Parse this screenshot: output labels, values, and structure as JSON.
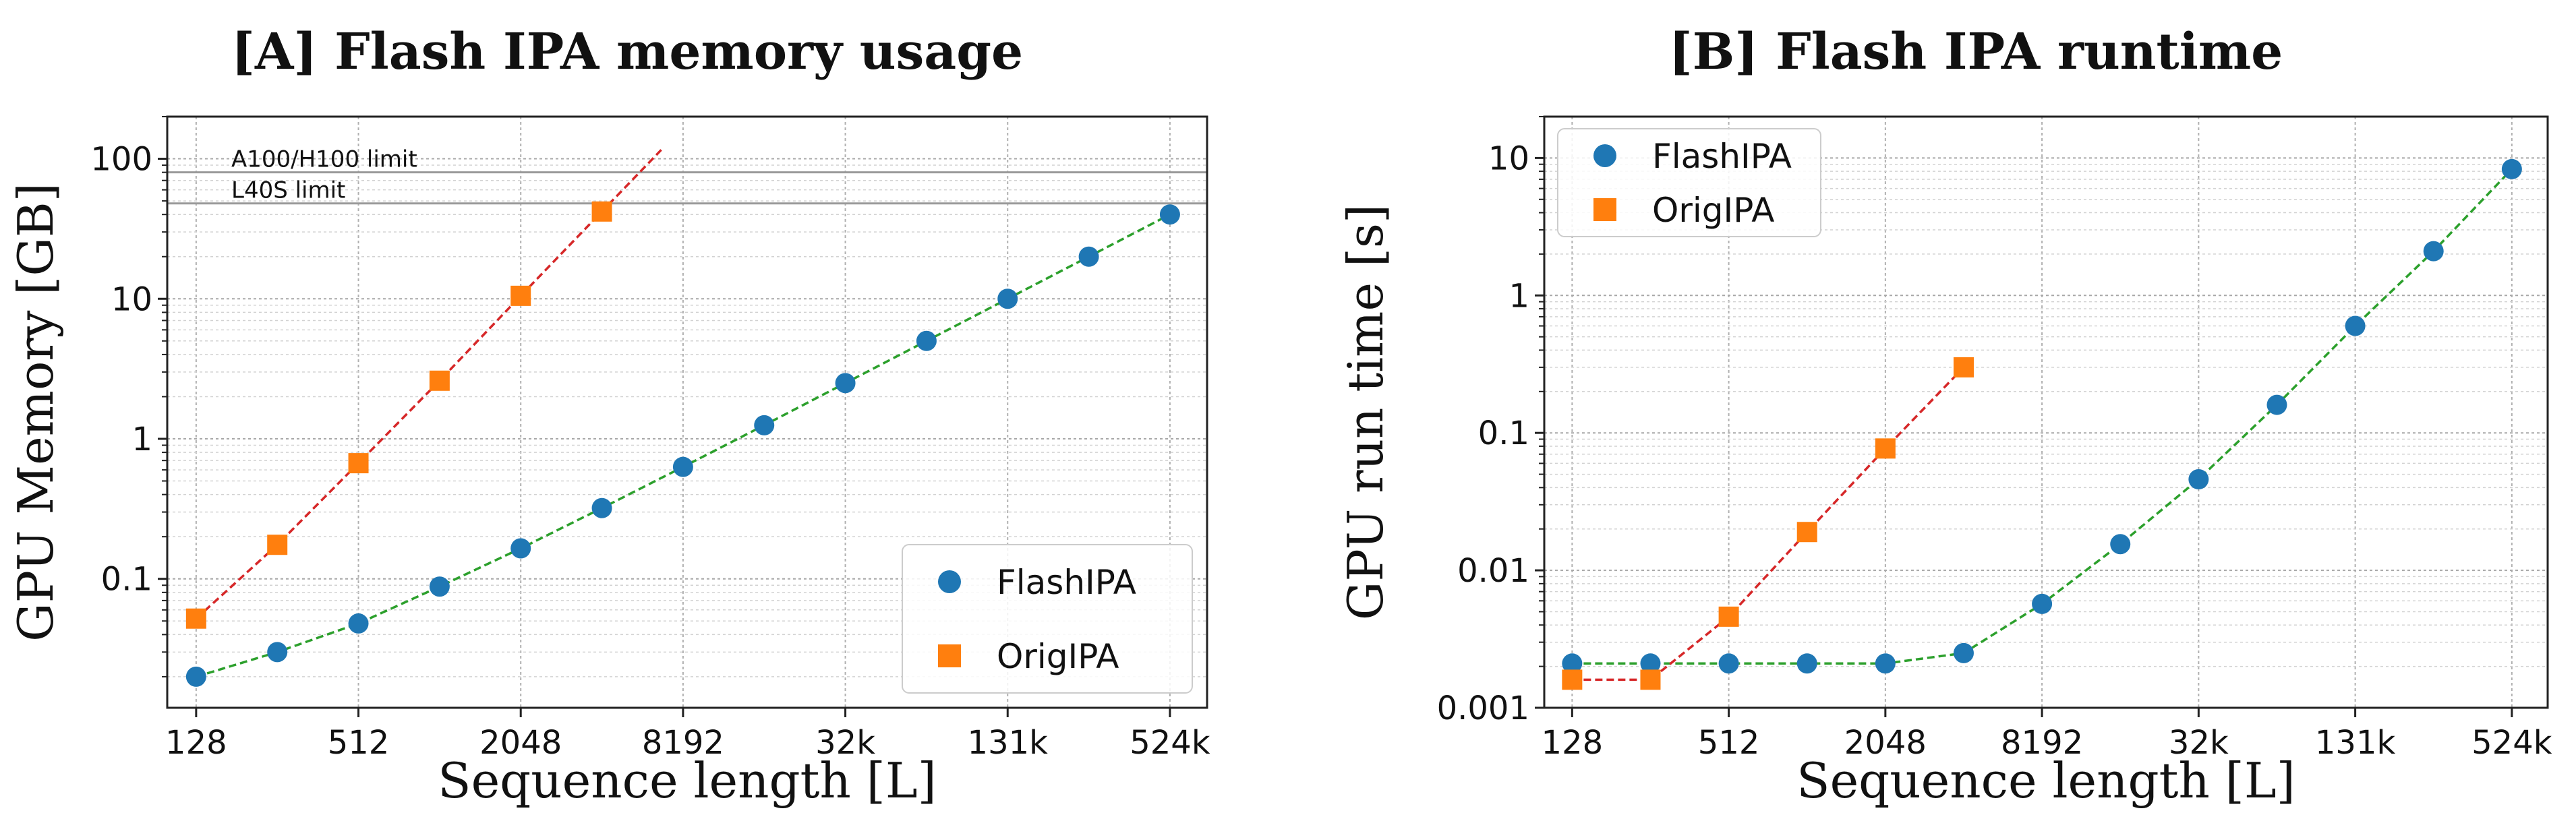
{
  "chart_data": [
    {
      "type": "line",
      "title": "[A] Flash IPA memory usage",
      "xlabel": "Sequence length [L]",
      "ylabel": "GPU Memory [GB]",
      "xscale": "log2",
      "yscale": "log",
      "ylim": [
        0.012,
        200
      ],
      "grid": true,
      "legend_position": "lower-right",
      "xticks": [
        {
          "value": 128,
          "label": "128"
        },
        {
          "value": 512,
          "label": "512"
        },
        {
          "value": 2048,
          "label": "2048"
        },
        {
          "value": 8192,
          "label": "8192"
        },
        {
          "value": 32768,
          "label": "32k"
        },
        {
          "value": 131072,
          "label": "131k"
        },
        {
          "value": 524288,
          "label": "524k"
        }
      ],
      "yticks": [
        {
          "value": 0.1,
          "label": "0.1"
        },
        {
          "value": 1,
          "label": "1"
        },
        {
          "value": 10,
          "label": "10"
        },
        {
          "value": 100,
          "label": "100"
        }
      ],
      "reference_lines": [
        {
          "value": 80,
          "label": "A100/H100 limit"
        },
        {
          "value": 48,
          "label": "L40S limit"
        }
      ],
      "series": [
        {
          "name": "FlashIPA",
          "marker": "circle",
          "color": "#1f77b4",
          "line_color": "#2ca02c",
          "x": [
            128,
            256,
            512,
            1024,
            2048,
            4096,
            8192,
            16384,
            32768,
            65536,
            131072,
            262144,
            524288
          ],
          "y": [
            0.02,
            0.03,
            0.048,
            0.088,
            0.165,
            0.32,
            0.63,
            1.25,
            2.5,
            5.0,
            10.0,
            20.0,
            40.0
          ]
        },
        {
          "name": "OrigIPA",
          "marker": "square",
          "color": "#ff7f0e",
          "line_color": "#d62728",
          "x": [
            128,
            256,
            512,
            1024,
            2048,
            4096
          ],
          "y": [
            0.052,
            0.175,
            0.67,
            2.6,
            10.5,
            42.0
          ],
          "trend_extends_to_x": 6800
        }
      ]
    },
    {
      "type": "line",
      "title": "[B] Flash IPA runtime",
      "xlabel": "Sequence length [L]",
      "ylabel": "GPU run time [s]",
      "xscale": "log2",
      "yscale": "log",
      "ylim": [
        0.001,
        20
      ],
      "grid": true,
      "legend_position": "upper-left",
      "xticks": [
        {
          "value": 128,
          "label": "128"
        },
        {
          "value": 512,
          "label": "512"
        },
        {
          "value": 2048,
          "label": "2048"
        },
        {
          "value": 8192,
          "label": "8192"
        },
        {
          "value": 32768,
          "label": "32k"
        },
        {
          "value": 131072,
          "label": "131k"
        },
        {
          "value": 524288,
          "label": "524k"
        }
      ],
      "yticks": [
        {
          "value": 0.001,
          "label": "0.001"
        },
        {
          "value": 0.01,
          "label": "0.01"
        },
        {
          "value": 0.1,
          "label": "0.1"
        },
        {
          "value": 1,
          "label": "1"
        },
        {
          "value": 10,
          "label": "10"
        }
      ],
      "series": [
        {
          "name": "FlashIPA",
          "marker": "circle",
          "color": "#1f77b4",
          "line_color": "#2ca02c",
          "x": [
            128,
            256,
            512,
            1024,
            2048,
            4096,
            8192,
            16384,
            32768,
            65536,
            131072,
            262144,
            524288
          ],
          "y": [
            0.0021,
            0.0021,
            0.0021,
            0.0021,
            0.0021,
            0.0025,
            0.0057,
            0.0155,
            0.046,
            0.16,
            0.6,
            2.1,
            8.3
          ]
        },
        {
          "name": "OrigIPA",
          "marker": "square",
          "color": "#ff7f0e",
          "line_color": "#d62728",
          "x": [
            128,
            256,
            512,
            1024,
            2048,
            4096
          ],
          "y": [
            0.0016,
            0.0016,
            0.0046,
            0.019,
            0.077,
            0.3
          ]
        }
      ]
    }
  ]
}
